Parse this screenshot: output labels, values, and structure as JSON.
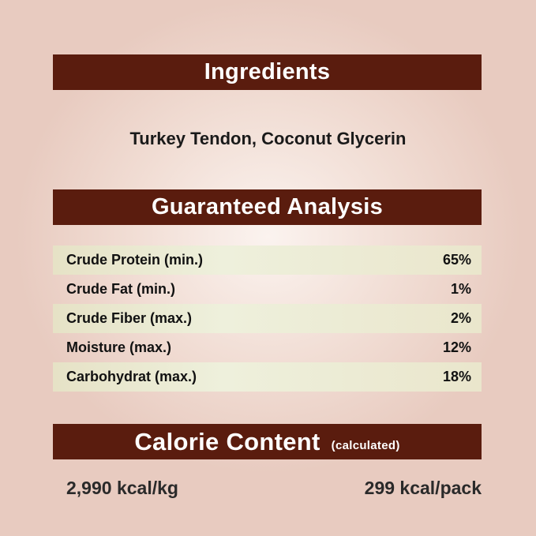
{
  "ingredients": {
    "title": "Ingredients",
    "text": "Turkey Tendon, Coconut Glycerin"
  },
  "analysis": {
    "title": "Guaranteed Analysis",
    "rows": [
      {
        "label": "Crude Protein (min.)",
        "value": "65%"
      },
      {
        "label": "Crude Fat (min.)",
        "value": "1%"
      },
      {
        "label": "Crude Fiber (max.)",
        "value": "2%"
      },
      {
        "label": "Moisture (max.)",
        "value": "12%"
      },
      {
        "label": "Carbohydrat (max.)",
        "value": "18%"
      }
    ]
  },
  "calorie": {
    "title": "Calorie Content",
    "note": "(calculated)",
    "per_kg": "2,990 kcal/kg",
    "per_pack": "299 kcal/pack"
  },
  "colors": {
    "banner": "#5a1c0e",
    "row_shade": "#e6e2c6"
  }
}
